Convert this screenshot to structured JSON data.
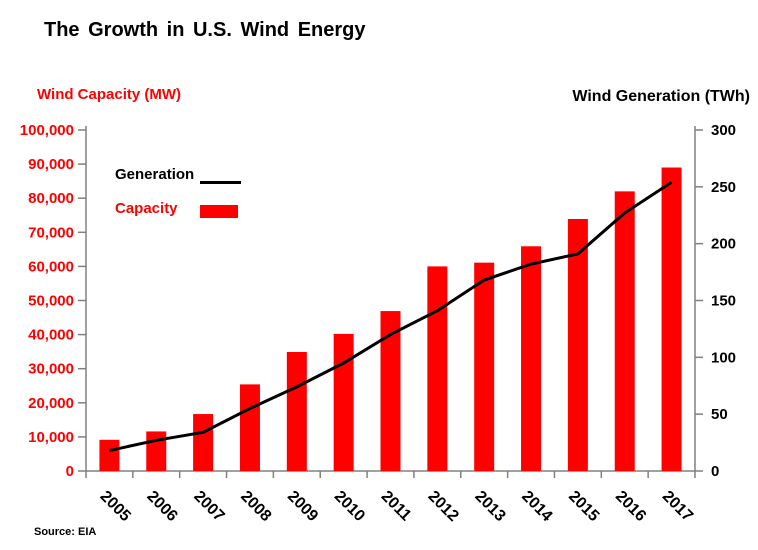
{
  "header": {
    "title": "The Growth in U.S. Wind Energy",
    "left_axis_title": "Wind Capacity (MW)",
    "right_axis_title": "Wind Generation (TWh)"
  },
  "legend": {
    "generation_label": "Generation",
    "capacity_label": "Capacity"
  },
  "footer": {
    "source": "Source: EIA"
  },
  "colors": {
    "capacity_bar": "#FF0000",
    "generation_line": "#000000",
    "axis_line": "#808080",
    "left_tick_text": "#FF0000",
    "right_tick_text": "#000000",
    "year_tick_text": "#000000"
  },
  "chart_data": {
    "type": "bar",
    "subtype": "combo-bar-line",
    "title": "The Growth in U.S. Wind Energy",
    "categories": [
      "2005",
      "2006",
      "2007",
      "2008",
      "2009",
      "2010",
      "2011",
      "2012",
      "2013",
      "2014",
      "2015",
      "2016",
      "2017"
    ],
    "series": [
      {
        "name": "Capacity",
        "type": "bar",
        "axis": "left",
        "unit": "MW",
        "color": "#FF0000",
        "values": [
          9150,
          11600,
          16700,
          25400,
          34900,
          40200,
          46900,
          60000,
          61100,
          65900,
          73900,
          82000,
          89000
        ]
      },
      {
        "name": "Generation",
        "type": "line",
        "axis": "right",
        "unit": "TWh",
        "color": "#000000",
        "values": [
          18,
          27,
          34,
          55,
          74,
          95,
          120,
          141,
          168,
          182,
          191,
          227,
          254
        ]
      }
    ],
    "left_axis": {
      "label": "Wind Capacity (MW)",
      "min": 0,
      "max": 100000,
      "step": 10000,
      "tick_labels_top_down": [
        "100,000",
        "90,000",
        "80,000",
        "70,000",
        "60,000",
        "50,000",
        "40,000",
        "30,000",
        "20,000",
        "10,000",
        "0"
      ]
    },
    "right_axis": {
      "label": "Wind Generation (TWh)",
      "min": 0,
      "max": 300,
      "step": 50,
      "tick_labels_top_down": [
        "300",
        "250",
        "200",
        "150",
        "100",
        "50",
        "0"
      ]
    },
    "grid": false,
    "legend_position": "inside-top-left",
    "x_label_rotation_deg": 45
  }
}
